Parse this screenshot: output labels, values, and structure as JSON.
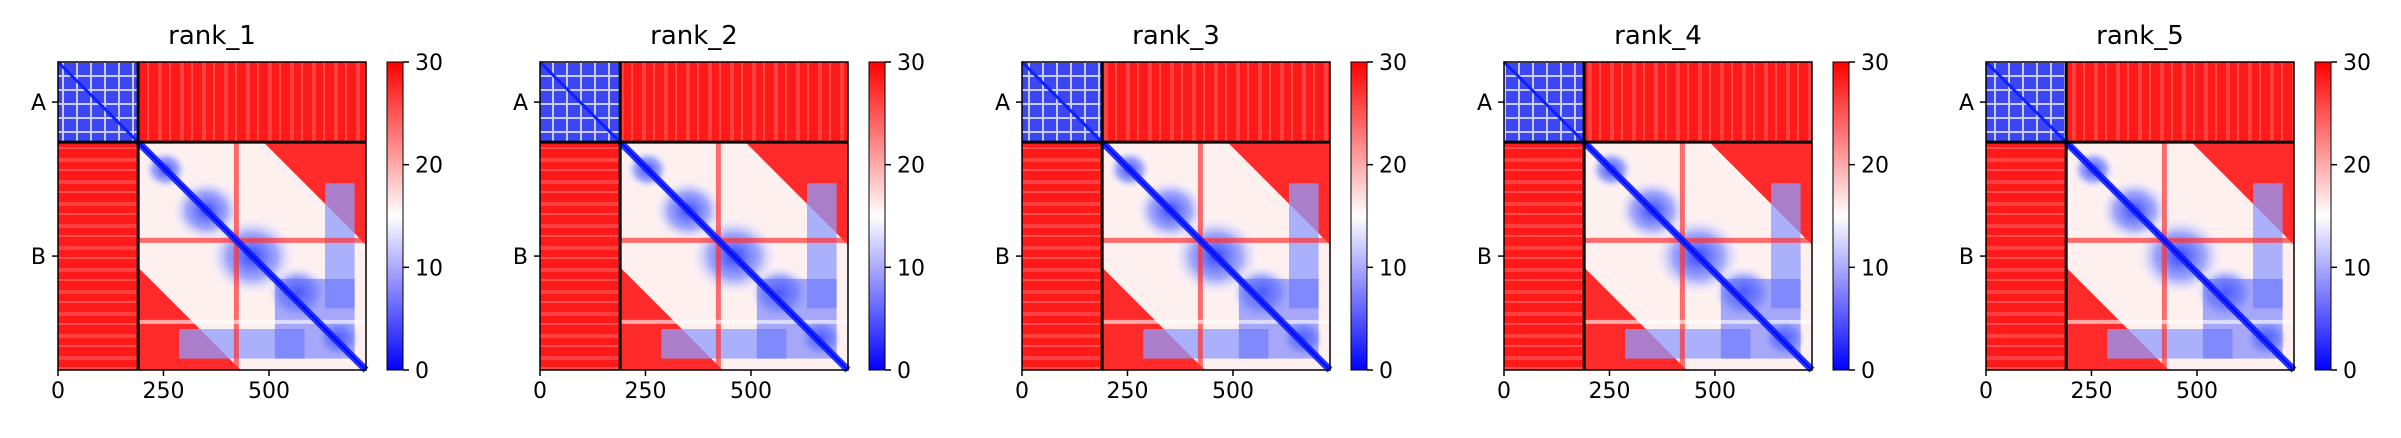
{
  "chart_data": {
    "type": "heatmap",
    "colormap": {
      "low": "#0000ff",
      "mid": "#ffffff",
      "high": "#ff0000"
    },
    "color_range": [
      0,
      30
    ],
    "colorbar_ticks": [
      0,
      10,
      20,
      30
    ],
    "x_range": [
      0,
      730
    ],
    "x_ticks": [
      0,
      250,
      500
    ],
    "chains": [
      {
        "label": "A",
        "start": 0,
        "end": 190
      },
      {
        "label": "B",
        "start": 190,
        "end": 730
      }
    ],
    "panels": [
      {
        "title": "rank_1"
      },
      {
        "title": "rank_2"
      },
      {
        "title": "rank_3"
      },
      {
        "title": "rank_4"
      },
      {
        "title": "rank_5"
      }
    ]
  }
}
